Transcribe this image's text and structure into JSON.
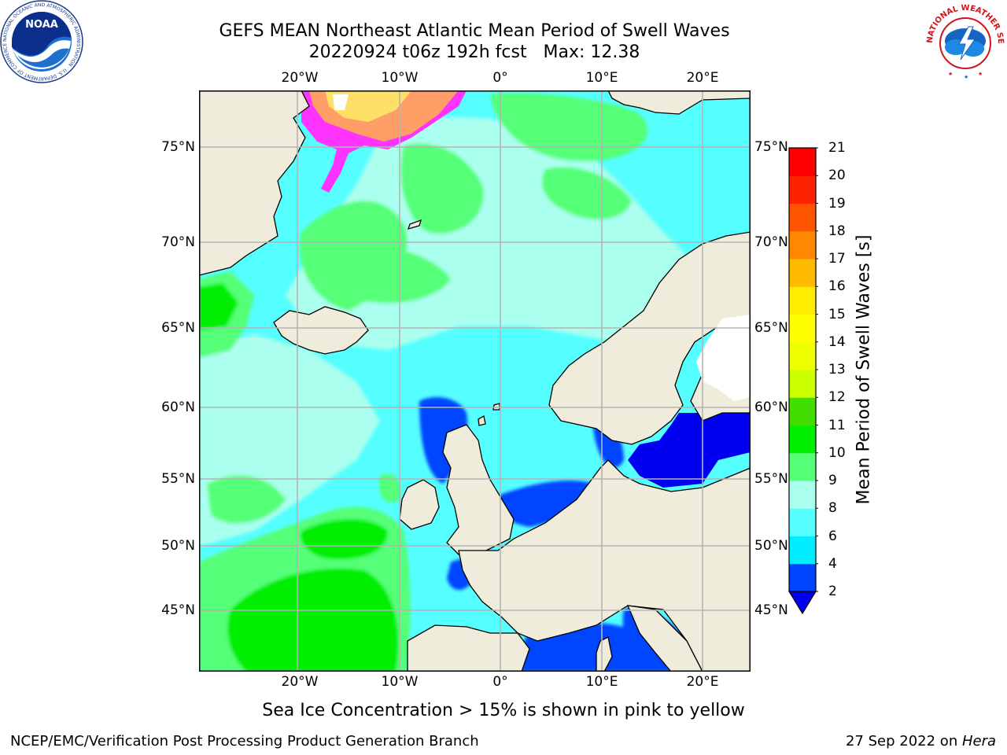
{
  "header": {
    "title_line1": "GEFS MEAN Northeast Atlantic Mean Period of Swell Waves",
    "title_line2": "20220924 t06z 192h fcst   Max: 12.38"
  },
  "logos": {
    "noaa_text": "NOAA",
    "noaa_ring_text": "NATIONAL OCEANIC AND ATMOSPHERIC ADMINISTRATION · U.S. DEPARTMENT OF COMMERCE",
    "nws_ring_text": "NATIONAL WEATHER SERVICE"
  },
  "map": {
    "lon_labels": [
      "20°W",
      "10°W",
      "0°",
      "10°E",
      "20°E"
    ],
    "lat_labels": [
      "75°N",
      "70°N",
      "65°N",
      "60°N",
      "55°N",
      "50°N",
      "45°N"
    ],
    "colors": {
      "land": "#efecdc",
      "grid": "#b4b4b4",
      "ice_pink": "#ff33ff",
      "ice_orange": "#ff9e66",
      "ice_yellow": "#ffe066"
    }
  },
  "colorbar": {
    "label": "Mean Period of Swell Waves [s]",
    "ticks": [
      "2",
      "4",
      "6",
      "8",
      "9",
      "10",
      "11",
      "12",
      "13",
      "14",
      "15",
      "16",
      "17",
      "18",
      "19",
      "20",
      "21"
    ],
    "colors": [
      "#0044ff",
      "#00eeff",
      "#55ffff",
      "#aaffee",
      "#55ff77",
      "#00ee00",
      "#44dd00",
      "#ccff00",
      "#eeff00",
      "#ffff00",
      "#ffee00",
      "#ffbb00",
      "#ff8800",
      "#ff5500",
      "#ff2200",
      "#ff0000"
    ],
    "under_color": "#0000ee"
  },
  "note": "Sea Ice Concentration > 15% is shown in pink to yellow",
  "footer": {
    "left": "NCEP/EMC/Verification Post Processing Product Generation Branch",
    "right_date": "27 Sep 2022 on ",
    "right_host": "Hera"
  },
  "chart_data": {
    "type": "heatmap",
    "title": "GEFS MEAN Northeast Atlantic Mean Period of Swell Waves",
    "subtitle": "20220924 t06z 192h fcst   Max: 12.38",
    "xlabel": "",
    "ylabel": "",
    "colorbar_label": "Mean Period of Swell Waves [s]",
    "x_ticks": [
      "20°W",
      "10°W",
      "0°",
      "10°E",
      "20°E"
    ],
    "y_ticks": [
      "75°N",
      "70°N",
      "65°N",
      "60°N",
      "55°N",
      "50°N",
      "45°N"
    ],
    "colorbar_levels": [
      2,
      4,
      6,
      8,
      9,
      10,
      11,
      12,
      13,
      14,
      15,
      16,
      17,
      18,
      19,
      20,
      21
    ],
    "max_value": 12.38,
    "grid": true,
    "legend_position": "right"
  }
}
